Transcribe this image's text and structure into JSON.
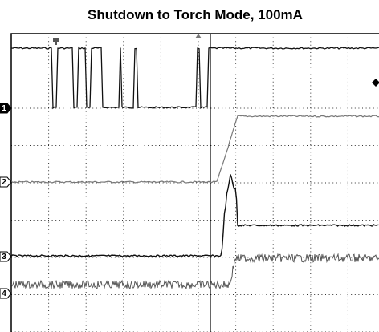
{
  "header": {
    "title": "Shutdown to Torch Mode, 100mA"
  },
  "channels": [
    "1",
    "2",
    "3",
    "4"
  ]
}
